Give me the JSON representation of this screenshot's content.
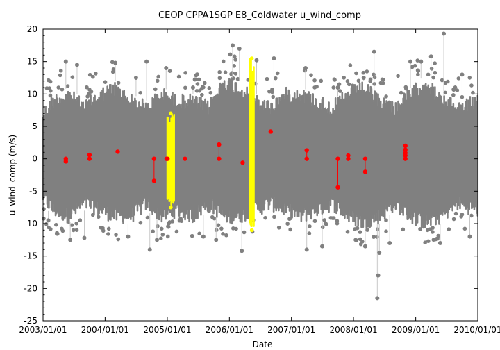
{
  "chart_data": {
    "type": "scatter",
    "title": "CEOP CPPA1SGP E8_Coldwater  u_wind_comp",
    "xlabel": "Date",
    "ylabel": "u_wind_comp (m/s)",
    "xlim": [
      "2003/01/01",
      "2010/01/01"
    ],
    "ylim": [
      -25,
      20
    ],
    "grid": false,
    "x_ticks": [
      "2003/01/01",
      "2004/01/01",
      "2005/01/01",
      "2006/01/01",
      "2007/01/01",
      "2008/01/01",
      "2009/01/01",
      "2010/01/01"
    ],
    "y_ticks": [
      20,
      15,
      10,
      5,
      0,
      -5,
      -10,
      -15,
      -20,
      -25
    ],
    "colors": {
      "bulk": "#808080",
      "flagged_yellow": "#ffff00",
      "flagged_red": "#ff0000"
    },
    "series": [
      {
        "color": "gray",
        "envelope": [
          {
            "date": "2003/01/01",
            "low": -7,
            "high": 8
          },
          {
            "date": "2003/03/01",
            "low": -9,
            "high": 10
          },
          {
            "date": "2003/06/01",
            "low": -10,
            "high": 11
          },
          {
            "date": "2003/09/01",
            "low": -8,
            "high": 9
          },
          {
            "date": "2003/12/01",
            "low": -9,
            "high": 11
          },
          {
            "date": "2004/03/01",
            "low": -10,
            "high": 12
          },
          {
            "date": "2004/06/01",
            "low": -10,
            "high": 10
          },
          {
            "date": "2004/09/01",
            "low": -8,
            "high": 9
          },
          {
            "date": "2004/12/01",
            "low": -10,
            "high": 11
          },
          {
            "date": "2005/03/01",
            "low": -9,
            "high": 10
          },
          {
            "date": "2005/06/01",
            "low": -10,
            "high": 10
          },
          {
            "date": "2005/09/01",
            "low": -8,
            "high": 9
          },
          {
            "date": "2005/12/01",
            "low": -10,
            "high": 13
          },
          {
            "date": "2006/03/01",
            "low": -10,
            "high": 12
          },
          {
            "date": "2006/06/01",
            "low": -9,
            "high": 10
          },
          {
            "date": "2006/09/01",
            "low": -8,
            "high": 9
          },
          {
            "date": "2006/12/01",
            "low": -9,
            "high": 11
          },
          {
            "date": "2007/03/01",
            "low": -10,
            "high": 11
          },
          {
            "date": "2007/06/01",
            "low": -9,
            "high": 10
          },
          {
            "date": "2007/09/01",
            "low": -8,
            "high": 9
          },
          {
            "date": "2007/12/01",
            "low": -10,
            "high": 11
          },
          {
            "date": "2008/03/01",
            "low": -11,
            "high": 12
          },
          {
            "date": "2008/06/01",
            "low": -10,
            "high": 10
          },
          {
            "date": "2008/09/01",
            "low": -8,
            "high": 9
          },
          {
            "date": "2008/12/01",
            "low": -10,
            "high": 11
          },
          {
            "date": "2009/03/01",
            "low": -11,
            "high": 13
          },
          {
            "date": "2009/06/01",
            "low": -10,
            "high": 10
          },
          {
            "date": "2009/09/01",
            "low": -8,
            "high": 9
          },
          {
            "date": "2009/12/31",
            "low": -9,
            "high": 10
          }
        ],
        "outliers": [
          {
            "date": "2003/02/01",
            "y": -9.5
          },
          {
            "date": "2003/05/15",
            "y": 15
          },
          {
            "date": "2003/06/10",
            "y": -12.5
          },
          {
            "date": "2003/07/20",
            "y": 14.5
          },
          {
            "date": "2003/09/01",
            "y": -12.2
          },
          {
            "date": "2004/03/01",
            "y": 14.8
          },
          {
            "date": "2004/05/15",
            "y": -12
          },
          {
            "date": "2004/07/01",
            "y": 12.5
          },
          {
            "date": "2004/09/01",
            "y": 15
          },
          {
            "date": "2004/09/20",
            "y": -14
          },
          {
            "date": "2004/11/01",
            "y": -12.5
          },
          {
            "date": "2004/12/25",
            "y": 14
          },
          {
            "date": "2005/06/01",
            "y": 11
          },
          {
            "date": "2005/08/01",
            "y": -12
          },
          {
            "date": "2005/10/15",
            "y": -12.5
          },
          {
            "date": "2006/01/20",
            "y": 17.5
          },
          {
            "date": "2006/03/01",
            "y": 17
          },
          {
            "date": "2006/03/15",
            "y": -14.2
          },
          {
            "date": "2006/06/10",
            "y": 15.2
          },
          {
            "date": "2006/09/20",
            "y": 15.5
          },
          {
            "date": "2007/03/25",
            "y": 14
          },
          {
            "date": "2007/04/01",
            "y": -14
          },
          {
            "date": "2007/07/01",
            "y": -13.5
          },
          {
            "date": "2007/10/01",
            "y": 11
          },
          {
            "date": "2008/03/01",
            "y": 12.5
          },
          {
            "date": "2008/03/10",
            "y": -13.5
          },
          {
            "date": "2008/05/01",
            "y": 16.5
          },
          {
            "date": "2008/05/20",
            "y": -21.5
          },
          {
            "date": "2008/05/25",
            "y": -18
          },
          {
            "date": "2008/06/01",
            "y": -14.5
          },
          {
            "date": "2008/08/01",
            "y": -13
          },
          {
            "date": "2008/12/01",
            "y": 15
          },
          {
            "date": "2009/02/01",
            "y": 15
          },
          {
            "date": "2009/04/01",
            "y": 15.8
          },
          {
            "date": "2009/05/25",
            "y": -13
          },
          {
            "date": "2009/06/15",
            "y": 19.3
          },
          {
            "date": "2009/10/01",
            "y": 13
          },
          {
            "date": "2009/11/15",
            "y": -12
          }
        ]
      },
      {
        "color": "yellow",
        "bands": [
          {
            "date_start": "2005/01/01",
            "date_end": "2005/02/10",
            "low": -7.5,
            "high": 7
          },
          {
            "date_start": "2006/05/01",
            "date_end": "2006/05/25",
            "low": -11,
            "high": 15.5
          }
        ]
      },
      {
        "color": "red",
        "points": [
          {
            "date": "2003/05/15",
            "y": 0
          },
          {
            "date": "2003/05/15",
            "y": -0.4
          },
          {
            "date": "2003/10/01",
            "y": 0.6
          },
          {
            "date": "2003/10/01",
            "y": 0
          },
          {
            "date": "2004/03/15",
            "y": 1.1
          },
          {
            "date": "2004/10/15",
            "y": 0
          },
          {
            "date": "2004/10/15",
            "y": -3.4
          },
          {
            "date": "2004/12/28",
            "y": 0
          },
          {
            "date": "2005/01/02",
            "y": 0
          },
          {
            "date": "2005/04/15",
            "y": 0
          },
          {
            "date": "2005/11/01",
            "y": 2.2
          },
          {
            "date": "2005/11/01",
            "y": 0
          },
          {
            "date": "2006/03/20",
            "y": -0.6
          },
          {
            "date": "2006/09/01",
            "y": 4.2
          },
          {
            "date": "2007/04/01",
            "y": 1.3
          },
          {
            "date": "2007/04/01",
            "y": 0
          },
          {
            "date": "2007/10/01",
            "y": 0
          },
          {
            "date": "2007/10/01",
            "y": -4.4
          },
          {
            "date": "2007/12/01",
            "y": 0.5
          },
          {
            "date": "2007/12/01",
            "y": 0
          },
          {
            "date": "2008/03/10",
            "y": 0
          },
          {
            "date": "2008/03/10",
            "y": -2
          },
          {
            "date": "2008/11/01",
            "y": 2
          },
          {
            "date": "2008/11/01",
            "y": 1.4
          },
          {
            "date": "2008/11/01",
            "y": 0.9
          },
          {
            "date": "2008/11/01",
            "y": 0.5
          },
          {
            "date": "2008/11/01",
            "y": 0
          }
        ]
      }
    ]
  }
}
